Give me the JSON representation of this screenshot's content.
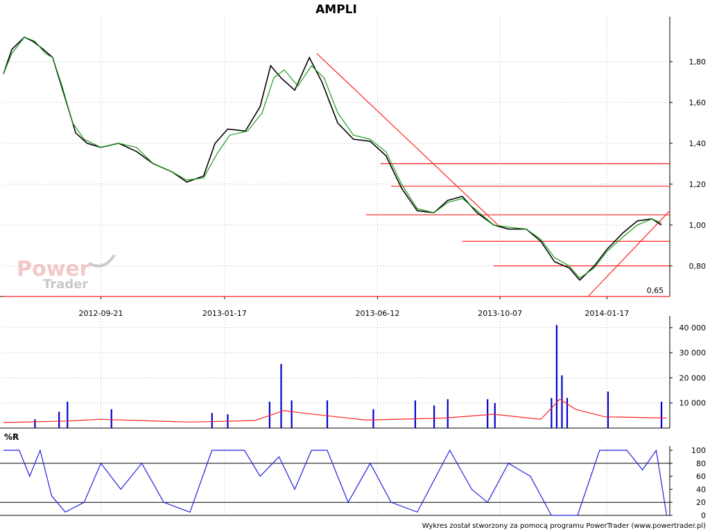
{
  "title": "AMPLI",
  "footer": "Wykres został stworzony za pomocą programu PowerTrader (www.powertrader.pl)",
  "watermark": {
    "line1": "Power",
    "line2": "Trader"
  },
  "colors": {
    "ma": "#1a9a1a",
    "trend": "#ff2020",
    "volume": "#0000cc",
    "volume_avg": "#ff2020",
    "wr": "#2020dd",
    "grid": "#b0b0b0"
  },
  "chart_data": [
    {
      "type": "candlestick",
      "name": "price",
      "title": "AMPLI",
      "ylim": [
        0.65,
        2.0
      ],
      "yticks": [
        0.8,
        1.0,
        1.2,
        1.4,
        1.6,
        1.8
      ],
      "ytick_labels": [
        "0,80",
        "1,00",
        "1,20",
        "1,40",
        "1,60",
        "1,80"
      ],
      "xticks": [
        "2012-09-21",
        "2013-01-17",
        "2013-06-12",
        "2013-10-07",
        "2014-01-17"
      ],
      "x_range": [
        "2012-06-20",
        "2014-03-18"
      ],
      "grid": true,
      "close_approx": [
        {
          "date": "2012-06-20",
          "value": 1.74
        },
        {
          "date": "2012-06-28",
          "value": 1.86
        },
        {
          "date": "2012-07-10",
          "value": 1.92
        },
        {
          "date": "2012-07-18",
          "value": 1.9
        },
        {
          "date": "2012-07-28",
          "value": 1.86
        },
        {
          "date": "2012-08-06",
          "value": 1.82
        },
        {
          "date": "2012-08-18",
          "value": 1.62
        },
        {
          "date": "2012-08-28",
          "value": 1.45
        },
        {
          "date": "2012-09-08",
          "value": 1.4
        },
        {
          "date": "2012-09-21",
          "value": 1.38
        },
        {
          "date": "2012-10-08",
          "value": 1.4
        },
        {
          "date": "2012-10-25",
          "value": 1.36
        },
        {
          "date": "2012-11-10",
          "value": 1.3
        },
        {
          "date": "2012-11-28",
          "value": 1.26
        },
        {
          "date": "2012-12-12",
          "value": 1.21
        },
        {
          "date": "2012-12-28",
          "value": 1.24
        },
        {
          "date": "2013-01-08",
          "value": 1.4
        },
        {
          "date": "2013-01-20",
          "value": 1.47
        },
        {
          "date": "2013-02-06",
          "value": 1.46
        },
        {
          "date": "2013-02-20",
          "value": 1.58
        },
        {
          "date": "2013-03-02",
          "value": 1.78
        },
        {
          "date": "2013-03-12",
          "value": 1.72
        },
        {
          "date": "2013-03-25",
          "value": 1.66
        },
        {
          "date": "2013-04-08",
          "value": 1.82
        },
        {
          "date": "2013-04-20",
          "value": 1.7
        },
        {
          "date": "2013-05-05",
          "value": 1.5
        },
        {
          "date": "2013-05-20",
          "value": 1.42
        },
        {
          "date": "2013-06-05",
          "value": 1.41
        },
        {
          "date": "2013-06-20",
          "value": 1.34
        },
        {
          "date": "2013-07-05",
          "value": 1.18
        },
        {
          "date": "2013-07-20",
          "value": 1.07
        },
        {
          "date": "2013-08-05",
          "value": 1.06
        },
        {
          "date": "2013-08-18",
          "value": 1.12
        },
        {
          "date": "2013-09-01",
          "value": 1.14
        },
        {
          "date": "2013-09-15",
          "value": 1.06
        },
        {
          "date": "2013-10-01",
          "value": 1.0
        },
        {
          "date": "2013-10-15",
          "value": 0.98
        },
        {
          "date": "2013-11-01",
          "value": 0.98
        },
        {
          "date": "2013-11-15",
          "value": 0.92
        },
        {
          "date": "2013-11-28",
          "value": 0.82
        },
        {
          "date": "2013-12-12",
          "value": 0.79
        },
        {
          "date": "2013-12-22",
          "value": 0.73
        },
        {
          "date": "2014-01-05",
          "value": 0.8
        },
        {
          "date": "2014-01-17",
          "value": 0.88
        },
        {
          "date": "2014-02-01",
          "value": 0.96
        },
        {
          "date": "2014-02-15",
          "value": 1.02
        },
        {
          "date": "2014-03-01",
          "value": 1.03
        },
        {
          "date": "2014-03-10",
          "value": 1.0
        }
      ],
      "ma_approx": [
        {
          "date": "2012-06-20",
          "value": 1.74
        },
        {
          "date": "2012-06-28",
          "value": 1.84
        },
        {
          "date": "2012-07-10",
          "value": 1.92
        },
        {
          "date": "2012-07-20",
          "value": 1.9
        },
        {
          "date": "2012-07-30",
          "value": 1.84
        },
        {
          "date": "2012-08-06",
          "value": 1.82
        },
        {
          "date": "2012-08-15",
          "value": 1.68
        },
        {
          "date": "2012-08-25",
          "value": 1.5
        },
        {
          "date": "2012-09-05",
          "value": 1.42
        },
        {
          "date": "2012-09-21",
          "value": 1.38
        },
        {
          "date": "2012-10-08",
          "value": 1.4
        },
        {
          "date": "2012-10-25",
          "value": 1.38
        },
        {
          "date": "2012-11-10",
          "value": 1.3
        },
        {
          "date": "2012-11-28",
          "value": 1.26
        },
        {
          "date": "2012-12-12",
          "value": 1.22
        },
        {
          "date": "2012-12-28",
          "value": 1.23
        },
        {
          "date": "2013-01-10",
          "value": 1.35
        },
        {
          "date": "2013-01-22",
          "value": 1.44
        },
        {
          "date": "2013-02-08",
          "value": 1.46
        },
        {
          "date": "2013-02-22",
          "value": 1.55
        },
        {
          "date": "2013-03-05",
          "value": 1.72
        },
        {
          "date": "2013-03-15",
          "value": 1.76
        },
        {
          "date": "2013-03-28",
          "value": 1.68
        },
        {
          "date": "2013-04-10",
          "value": 1.78
        },
        {
          "date": "2013-04-22",
          "value": 1.72
        },
        {
          "date": "2013-05-05",
          "value": 1.55
        },
        {
          "date": "2013-05-20",
          "value": 1.44
        },
        {
          "date": "2013-06-05",
          "value": 1.42
        },
        {
          "date": "2013-06-20",
          "value": 1.36
        },
        {
          "date": "2013-07-05",
          "value": 1.2
        },
        {
          "date": "2013-07-20",
          "value": 1.08
        },
        {
          "date": "2013-08-05",
          "value": 1.06
        },
        {
          "date": "2013-08-18",
          "value": 1.11
        },
        {
          "date": "2013-09-01",
          "value": 1.13
        },
        {
          "date": "2013-09-15",
          "value": 1.07
        },
        {
          "date": "2013-10-01",
          "value": 1.0
        },
        {
          "date": "2013-10-15",
          "value": 0.99
        },
        {
          "date": "2013-11-01",
          "value": 0.98
        },
        {
          "date": "2013-11-15",
          "value": 0.93
        },
        {
          "date": "2013-11-28",
          "value": 0.84
        },
        {
          "date": "2013-12-12",
          "value": 0.8
        },
        {
          "date": "2013-12-22",
          "value": 0.74
        },
        {
          "date": "2014-01-05",
          "value": 0.79
        },
        {
          "date": "2014-01-17",
          "value": 0.87
        },
        {
          "date": "2014-02-01",
          "value": 0.94
        },
        {
          "date": "2014-02-15",
          "value": 1.0
        },
        {
          "date": "2014-03-01",
          "value": 1.03
        },
        {
          "date": "2014-03-10",
          "value": 1.01
        }
      ],
      "horizontal_levels": [
        {
          "value": 1.3,
          "from": "2013-06-15",
          "to": "2014-03-18"
        },
        {
          "value": 1.19,
          "from": "2013-06-25",
          "to": "2014-03-18"
        },
        {
          "value": 1.05,
          "from": "2013-06-01",
          "to": "2014-03-18"
        },
        {
          "value": 0.92,
          "from": "2013-09-01",
          "to": "2014-03-18"
        },
        {
          "value": 0.8,
          "from": "2013-10-01",
          "to": "2014-03-18"
        },
        {
          "value": 0.65,
          "from": "2012-06-20",
          "to": "2014-03-18"
        }
      ],
      "trend_lines": [
        {
          "from": {
            "date": "2013-04-15",
            "value": 1.84
          },
          "to": {
            "date": "2013-10-05",
            "value": 1.0
          }
        },
        {
          "from": {
            "date": "2013-12-30",
            "value": 0.65
          },
          "to": {
            "date": "2014-03-18",
            "value": 1.07
          }
        }
      ],
      "annotations": [
        {
          "text": "0,65",
          "date": "2014-03-12",
          "value": 0.65
        }
      ]
    },
    {
      "type": "bar",
      "name": "volume",
      "ylim": [
        0,
        43000
      ],
      "yticks": [
        10000,
        20000,
        30000,
        40000
      ],
      "ytick_labels": [
        "10 000",
        "20 000",
        "30 000",
        "40 000"
      ],
      "grid": true,
      "bars_approx": [
        {
          "date": "2012-07-20",
          "value": 3500
        },
        {
          "date": "2012-08-12",
          "value": 6500
        },
        {
          "date": "2012-08-20",
          "value": 10500
        },
        {
          "date": "2012-10-01",
          "value": 7500
        },
        {
          "date": "2013-01-05",
          "value": 6000
        },
        {
          "date": "2013-01-20",
          "value": 5500
        },
        {
          "date": "2013-03-01",
          "value": 10500
        },
        {
          "date": "2013-03-12",
          "value": 25500
        },
        {
          "date": "2013-03-22",
          "value": 11000
        },
        {
          "date": "2013-04-25",
          "value": 11000
        },
        {
          "date": "2013-06-08",
          "value": 7500
        },
        {
          "date": "2013-07-18",
          "value": 11000
        },
        {
          "date": "2013-08-05",
          "value": 9000
        },
        {
          "date": "2013-08-18",
          "value": 11500
        },
        {
          "date": "2013-09-25",
          "value": 11500
        },
        {
          "date": "2013-10-02",
          "value": 10000
        },
        {
          "date": "2013-11-25",
          "value": 12000
        },
        {
          "date": "2013-11-30",
          "value": 41000
        },
        {
          "date": "2013-12-05",
          "value": 21000
        },
        {
          "date": "2013-12-10",
          "value": 12000
        },
        {
          "date": "2014-01-18",
          "value": 14500
        },
        {
          "date": "2014-03-10",
          "value": 10500
        }
      ],
      "avg_approx": [
        {
          "date": "2012-06-20",
          "value": 2200
        },
        {
          "date": "2012-08-20",
          "value": 2800
        },
        {
          "date": "2012-09-20",
          "value": 3500
        },
        {
          "date": "2012-12-15",
          "value": 2400
        },
        {
          "date": "2013-02-15",
          "value": 3000
        },
        {
          "date": "2013-03-15",
          "value": 7000
        },
        {
          "date": "2013-04-01",
          "value": 6000
        },
        {
          "date": "2013-06-01",
          "value": 3200
        },
        {
          "date": "2013-08-15",
          "value": 4000
        },
        {
          "date": "2013-10-01",
          "value": 5500
        },
        {
          "date": "2013-11-15",
          "value": 3500
        },
        {
          "date": "2013-12-03",
          "value": 11500
        },
        {
          "date": "2013-12-18",
          "value": 7500
        },
        {
          "date": "2014-01-15",
          "value": 4500
        },
        {
          "date": "2014-03-15",
          "value": 4000
        }
      ]
    },
    {
      "type": "line",
      "name": "williams_r",
      "title": "%R",
      "ylim": [
        0,
        100
      ],
      "yticks": [
        0,
        20,
        40,
        60,
        80,
        100
      ],
      "ytick_labels": [
        "0",
        "20",
        "40",
        "60",
        "80",
        "100"
      ],
      "reference_lines": [
        20,
        80
      ],
      "grid": true,
      "values_approx": [
        {
          "date": "2012-06-20",
          "value": 100
        },
        {
          "date": "2012-07-05",
          "value": 100
        },
        {
          "date": "2012-07-15",
          "value": 60
        },
        {
          "date": "2012-07-25",
          "value": 100
        },
        {
          "date": "2012-08-05",
          "value": 30
        },
        {
          "date": "2012-08-18",
          "value": 5
        },
        {
          "date": "2012-09-05",
          "value": 20
        },
        {
          "date": "2012-09-21",
          "value": 80
        },
        {
          "date": "2012-10-10",
          "value": 40
        },
        {
          "date": "2012-10-30",
          "value": 80
        },
        {
          "date": "2012-11-20",
          "value": 20
        },
        {
          "date": "2012-12-15",
          "value": 5
        },
        {
          "date": "2013-01-05",
          "value": 100
        },
        {
          "date": "2013-02-05",
          "value": 100
        },
        {
          "date": "2013-02-20",
          "value": 60
        },
        {
          "date": "2013-03-10",
          "value": 90
        },
        {
          "date": "2013-03-25",
          "value": 40
        },
        {
          "date": "2013-04-10",
          "value": 100
        },
        {
          "date": "2013-04-25",
          "value": 100
        },
        {
          "date": "2013-05-15",
          "value": 20
        },
        {
          "date": "2013-06-05",
          "value": 80
        },
        {
          "date": "2013-06-25",
          "value": 20
        },
        {
          "date": "2013-07-20",
          "value": 5
        },
        {
          "date": "2013-08-20",
          "value": 100
        },
        {
          "date": "2013-09-10",
          "value": 40
        },
        {
          "date": "2013-09-25",
          "value": 20
        },
        {
          "date": "2013-10-15",
          "value": 80
        },
        {
          "date": "2013-11-05",
          "value": 60
        },
        {
          "date": "2013-11-25",
          "value": 0
        },
        {
          "date": "2013-12-20",
          "value": 0
        },
        {
          "date": "2014-01-10",
          "value": 100
        },
        {
          "date": "2014-02-05",
          "value": 100
        },
        {
          "date": "2014-02-20",
          "value": 70
        },
        {
          "date": "2014-03-05",
          "value": 100
        },
        {
          "date": "2014-03-15",
          "value": 0
        }
      ]
    }
  ]
}
